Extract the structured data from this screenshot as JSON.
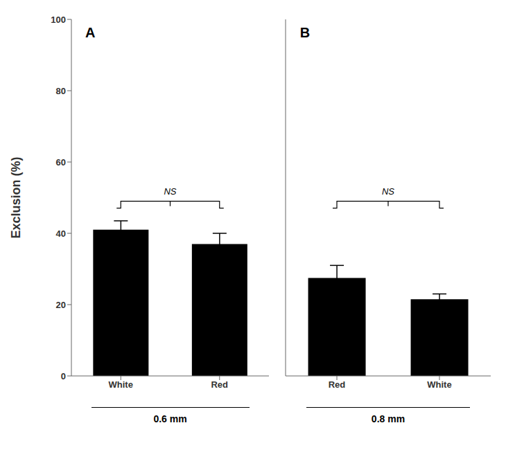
{
  "chart_data": [
    {
      "type": "bar",
      "title": "A",
      "subtitle": "0.6 mm",
      "y_label": "Exclusion (%)",
      "categories": [
        "White",
        "Red"
      ],
      "values": [
        41.0,
        37.0
      ],
      "errors": [
        2.5,
        3.0
      ],
      "color": "#000000",
      "ylim": [
        0,
        100
      ],
      "yticks": [
        0,
        20,
        40,
        60,
        80,
        100
      ],
      "grid": false,
      "annotations": [
        {
          "text": "NS",
          "y": 49
        }
      ]
    },
    {
      "type": "bar",
      "title": "B",
      "subtitle": "0.8 mm",
      "categories": [
        "Red",
        "White"
      ],
      "values": [
        27.5,
        21.5
      ],
      "errors": [
        3.5,
        1.5
      ],
      "color": "#000000",
      "ylim": [
        0,
        100
      ],
      "yticks": [
        0,
        20,
        40,
        60,
        80,
        100
      ],
      "grid": false,
      "tick_labels": "x",
      "annotations": [
        {
          "text": "NS",
          "y": 49
        }
      ]
    }
  ]
}
